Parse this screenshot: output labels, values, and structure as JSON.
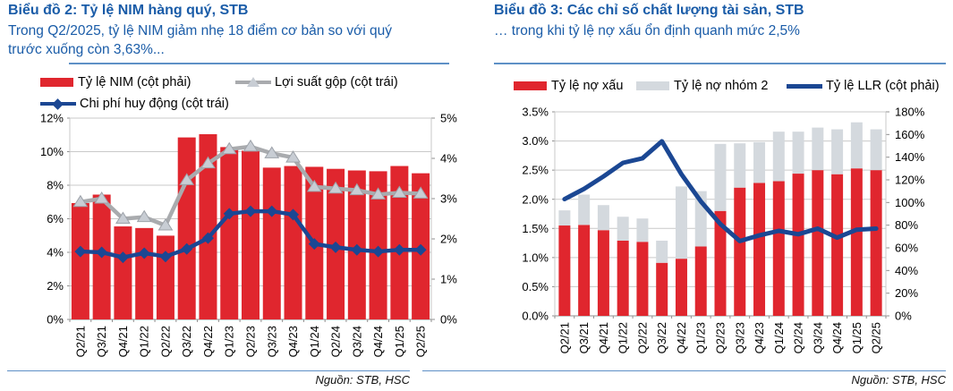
{
  "colors": {
    "title_blue": "#1A5CA8",
    "rule_blue": "#5E90C6",
    "red": "#E0262E",
    "navy": "#1B4793",
    "gray_line": "#A9ABAE",
    "gray_bar": "#D4D9DE",
    "triangle_fill": "#C8CDD4",
    "triangle_stroke": "#9DA2A9",
    "grid": "#C9C9C9",
    "axis": "#8F8F8F"
  },
  "footer_left": {
    "source": "Nguồn: STB, HSC"
  },
  "footer_right": {
    "source": "Nguồn: STB, HSC"
  },
  "chart_data": [
    {
      "type": "bar+line",
      "title": "Biểu đồ 2: Tỷ lệ NIM hàng quý, STB",
      "subtitle": "Trong Q2/2025, tỷ lệ NIM giảm nhẹ 18 điểm cơ bản so với quý trước xuống còn 3,63%...",
      "categories": [
        "Q2/21",
        "Q3/21",
        "Q4/21",
        "Q1/22",
        "Q2/22",
        "Q3/22",
        "Q4/22",
        "Q1/23",
        "Q2/23",
        "Q3/23",
        "Q4/23",
        "Q1/24",
        "Q2/24",
        "Q3/24",
        "Q4/24",
        "Q1/25",
        "Q2/25"
      ],
      "left_axis": {
        "min": 0,
        "max": 12,
        "step": 2,
        "labels": [
          "0%",
          "2%",
          "4%",
          "6%",
          "8%",
          "10%",
          "12%"
        ]
      },
      "right_axis": {
        "min": 0,
        "max": 5,
        "step": 1,
        "labels": [
          "0%",
          "1%",
          "2%",
          "3%",
          "4%",
          "5%"
        ]
      },
      "series": [
        {
          "id": "ty-le-nim",
          "name": "Tỷ lệ NIM (cột phải)",
          "type": "bar",
          "axis": "right",
          "color": "#E0262E",
          "values": [
            2.89,
            3.1,
            2.31,
            2.27,
            2.08,
            4.52,
            4.6,
            4.28,
            4.19,
            3.77,
            3.81,
            3.79,
            3.74,
            3.7,
            3.68,
            3.81,
            3.63
          ]
        },
        {
          "id": "loi-suat-gop",
          "name": "Lợi suất gộp (cột trái)",
          "type": "line",
          "marker": "triangle",
          "axis": "left",
          "color": "#A9ABAE",
          "width": 4.5,
          "values": [
            7.0,
            7.2,
            6.0,
            6.1,
            5.6,
            8.3,
            9.3,
            10.15,
            10.3,
            9.9,
            9.65,
            7.9,
            7.8,
            7.7,
            7.45,
            7.55,
            7.5
          ]
        },
        {
          "id": "chi-phi-huy-dong",
          "name": "Chi phí huy động (cột trái)",
          "type": "line",
          "marker": "diamond",
          "axis": "left",
          "color": "#1B4793",
          "width": 4.5,
          "values": [
            4.05,
            4.0,
            3.7,
            3.95,
            3.75,
            4.2,
            4.85,
            6.3,
            6.45,
            6.45,
            6.25,
            4.5,
            4.3,
            4.15,
            4.05,
            4.15,
            4.15
          ]
        }
      ],
      "legend_position": "top",
      "grid": true,
      "source": "Nguồn: STB, HSC"
    },
    {
      "type": "stacked-bar+line",
      "title": "Biểu đồ 3: Các chỉ số chất lượng tài sản, STB",
      "subtitle": "… trong khi tỷ lệ nợ xấu ổn định quanh mức 2,5%",
      "categories": [
        "Q2/21",
        "Q3/21",
        "Q4/21",
        "Q1/22",
        "Q2/22",
        "Q3/22",
        "Q4/22",
        "Q1/23",
        "Q2/23",
        "Q3/23",
        "Q4/23",
        "Q1/24",
        "Q2/24",
        "Q3/24",
        "Q4/24",
        "Q1/25",
        "Q2/25"
      ],
      "left_axis": {
        "min": 0,
        "max": 3.5,
        "step": 0.5,
        "labels": [
          "0.0%",
          "0.5%",
          "1.0%",
          "1.5%",
          "2.0%",
          "2.5%",
          "3.0%",
          "3.5%"
        ]
      },
      "right_axis": {
        "min": 0,
        "max": 180,
        "step": 20,
        "labels": [
          "0%",
          "20%",
          "40%",
          "60%",
          "80%",
          "100%",
          "120%",
          "140%",
          "160%",
          "180%"
        ]
      },
      "series": [
        {
          "id": "ty-le-no-xau",
          "name": "Tỷ lệ nợ xấu",
          "type": "bar",
          "axis": "left",
          "color": "#E0262E",
          "values": [
            1.55,
            1.56,
            1.47,
            1.29,
            1.27,
            0.91,
            0.98,
            1.19,
            1.8,
            2.2,
            2.28,
            2.31,
            2.44,
            2.5,
            2.43,
            2.53,
            2.5
          ]
        },
        {
          "id": "ty-le-no-nhom-2",
          "name": "Tỷ lệ nợ nhóm 2",
          "type": "bar",
          "axis": "left",
          "color": "#D4D9DE",
          "values": [
            0.26,
            0.52,
            0.43,
            0.41,
            0.4,
            0.38,
            1.24,
            0.95,
            1.15,
            0.76,
            0.7,
            0.85,
            0.72,
            0.73,
            0.77,
            0.79,
            0.7
          ]
        },
        {
          "id": "ty-le-llr",
          "name": "Tỷ lệ LLR (cột phải)",
          "type": "line",
          "marker": "none",
          "axis": "right",
          "color": "#1B4793",
          "width": 5,
          "values": [
            103,
            112,
            123,
            135,
            139,
            154,
            125,
            101,
            81,
            66,
            71,
            75,
            72,
            77,
            69,
            76,
            77
          ]
        }
      ],
      "legend_position": "top",
      "grid": true,
      "source": "Nguồn: STB, HSC"
    }
  ]
}
